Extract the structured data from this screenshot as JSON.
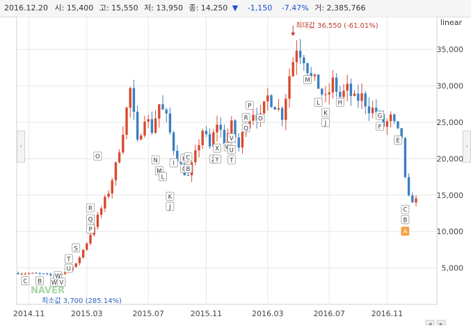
{
  "info_bar": {
    "date": "2016.12.20",
    "open_label": "시:",
    "open": "15,400",
    "high_label": "고:",
    "high": "15,550",
    "low_label": "저:",
    "low": "13,950",
    "close_label": "종:",
    "close": "14,250",
    "change_arrow": "▼",
    "change": "-1,150",
    "change_pct": "-7.47%",
    "volume_label": "거:",
    "volume": "2,385,766"
  },
  "colors": {
    "up": "#d9492f",
    "down": "#3a7fc1",
    "grid": "#e6e6e6",
    "axis_text": "#444444",
    "highlight": "#f5a142"
  },
  "chart_data": {
    "type": "candlestick",
    "scale_label": "linear",
    "ylim": [
      0,
      39500
    ],
    "y_ticks": [
      "5,000",
      "10,000",
      "15,000",
      "20,000",
      "25,000",
      "30,000",
      "35,000"
    ],
    "y_tick_values": [
      5000,
      10000,
      15000,
      20000,
      25000,
      30000,
      35000
    ],
    "x_ticks": [
      "2014.11",
      "2015.03",
      "2015.07",
      "2015.11",
      "2016.03",
      "2016.07",
      "2016.11"
    ],
    "x_tick_index": [
      3,
      19,
      36,
      52,
      69,
      86,
      102
    ],
    "bars": 111,
    "max_annotation": {
      "text": "최대값 36,550 (-61.01%)",
      "index": 76,
      "value": 36550
    },
    "min_annotation": {
      "text": "최소값 3,700 (285.14%)",
      "index": 10,
      "value": 3700
    },
    "close_path": [
      [
        0,
        4300
      ],
      [
        6,
        4200
      ],
      [
        10,
        3900
      ],
      [
        13,
        4400
      ],
      [
        16,
        5500
      ],
      [
        19,
        8500
      ],
      [
        22,
        12000
      ],
      [
        25,
        15500
      ],
      [
        27,
        19000
      ],
      [
        29,
        24000
      ],
      [
        31,
        29500
      ],
      [
        33,
        22000
      ],
      [
        35,
        26000
      ],
      [
        37,
        24000
      ],
      [
        39,
        27500
      ],
      [
        41,
        25500
      ],
      [
        43,
        21500
      ],
      [
        45,
        19000
      ],
      [
        47,
        17500
      ],
      [
        49,
        20500
      ],
      [
        51,
        24000
      ],
      [
        53,
        21500
      ],
      [
        55,
        25000
      ],
      [
        57,
        22500
      ],
      [
        59,
        24500
      ],
      [
        61,
        21500
      ],
      [
        63,
        25000
      ],
      [
        65,
        26500
      ],
      [
        67,
        25500
      ],
      [
        69,
        28500
      ],
      [
        71,
        27500
      ],
      [
        73,
        26000
      ],
      [
        75,
        31500
      ],
      [
        77,
        35500
      ],
      [
        79,
        34000
      ],
      [
        81,
        31000
      ],
      [
        83,
        30000
      ],
      [
        85,
        28000
      ],
      [
        87,
        30500
      ],
      [
        89,
        28500
      ],
      [
        91,
        29500
      ],
      [
        93,
        28000
      ],
      [
        95,
        28500
      ],
      [
        97,
        27000
      ],
      [
        99,
        26500
      ],
      [
        101,
        24500
      ],
      [
        103,
        25500
      ],
      [
        105,
        23500
      ],
      [
        106,
        23000
      ],
      [
        107,
        17000
      ],
      [
        108,
        14500
      ],
      [
        110,
        14250
      ]
    ],
    "annotations": [
      {
        "label": "C",
        "index": 2,
        "value": 3200,
        "highlight": false
      },
      {
        "label": "B",
        "index": 6,
        "value": 3200,
        "highlight": false
      },
      {
        "label": "W",
        "index": 10,
        "value": 3000,
        "highlight": false
      },
      {
        "label": "W",
        "index": 11,
        "value": 3900,
        "highlight": false
      },
      {
        "label": "V",
        "index": 12,
        "value": 3000,
        "highlight": false
      },
      {
        "label": "U",
        "index": 14,
        "value": 4900,
        "highlight": false
      },
      {
        "label": "T",
        "index": 14,
        "value": 6200,
        "highlight": false
      },
      {
        "label": "S",
        "index": 16,
        "value": 7700,
        "highlight": false
      },
      {
        "label": "P",
        "index": 20,
        "value": 10300,
        "highlight": false
      },
      {
        "label": "Q",
        "index": 20,
        "value": 11700,
        "highlight": false
      },
      {
        "label": "R",
        "index": 20,
        "value": 13200,
        "highlight": false
      },
      {
        "label": "O",
        "index": 22,
        "value": 20300,
        "highlight": false
      },
      {
        "label": "N",
        "index": 38,
        "value": 19800,
        "highlight": false
      },
      {
        "label": "M",
        "index": 39,
        "value": 18300,
        "highlight": false
      },
      {
        "label": "L",
        "index": 40,
        "value": 17500,
        "highlight": false
      },
      {
        "label": "I",
        "index": 43,
        "value": 19400,
        "highlight": false
      },
      {
        "label": "K",
        "index": 42,
        "value": 14800,
        "highlight": false
      },
      {
        "label": "J",
        "index": 42,
        "value": 13400,
        "highlight": false
      },
      {
        "label": "H",
        "index": 46,
        "value": 20000,
        "highlight": false
      },
      {
        "label": "C",
        "index": 47,
        "value": 20200,
        "highlight": false
      },
      {
        "label": "G",
        "index": 46,
        "value": 18600,
        "highlight": false
      },
      {
        "label": "B",
        "index": 47,
        "value": 18600,
        "highlight": false
      },
      {
        "label": "X",
        "index": 55,
        "value": 21400,
        "highlight": false
      },
      {
        "label": "Z",
        "index": 54,
        "value": 19900,
        "highlight": false
      },
      {
        "label": "Y",
        "index": 55,
        "value": 19900,
        "highlight": false
      },
      {
        "label": "W",
        "index": 58,
        "value": 21600,
        "highlight": false
      },
      {
        "label": "V",
        "index": 59,
        "value": 22800,
        "highlight": false
      },
      {
        "label": "U",
        "index": 59,
        "value": 21200,
        "highlight": false
      },
      {
        "label": "T",
        "index": 59,
        "value": 19800,
        "highlight": false
      },
      {
        "label": "R",
        "index": 63,
        "value": 25600,
        "highlight": false
      },
      {
        "label": "P",
        "index": 64,
        "value": 27300,
        "highlight": false
      },
      {
        "label": "Q",
        "index": 63,
        "value": 24200,
        "highlight": false
      },
      {
        "label": "O",
        "index": 67,
        "value": 25500,
        "highlight": false
      },
      {
        "label": "M",
        "index": 80,
        "value": 30800,
        "highlight": false
      },
      {
        "label": "L",
        "index": 83,
        "value": 27700,
        "highlight": false
      },
      {
        "label": "H",
        "index": 89,
        "value": 27700,
        "highlight": false
      },
      {
        "label": "K",
        "index": 85,
        "value": 26300,
        "highlight": false
      },
      {
        "label": "J",
        "index": 85,
        "value": 24900,
        "highlight": false
      },
      {
        "label": "G",
        "index": 100,
        "value": 25900,
        "highlight": false
      },
      {
        "label": "F",
        "index": 100,
        "value": 24400,
        "highlight": false
      },
      {
        "label": "E",
        "index": 105,
        "value": 22500,
        "highlight": false
      },
      {
        "label": "C",
        "index": 107,
        "value": 13000,
        "highlight": false
      },
      {
        "label": "B",
        "index": 107,
        "value": 11600,
        "highlight": false
      },
      {
        "label": "A",
        "index": 107,
        "value": 10000,
        "highlight": true
      }
    ]
  },
  "watermark": "NAVER",
  "right_handle_glyph": "›",
  "left_handle_glyph": "‹",
  "bottom_glyphs": [
    "◀",
    "▶"
  ]
}
